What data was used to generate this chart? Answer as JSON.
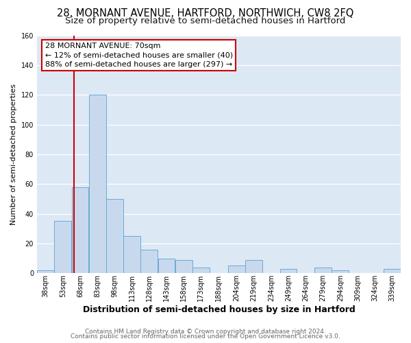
{
  "title1": "28, MORNANT AVENUE, HARTFORD, NORTHWICH, CW8 2FQ",
  "title2": "Size of property relative to semi-detached houses in Hartford",
  "xlabel": "Distribution of semi-detached houses by size in Hartford",
  "ylabel": "Number of semi-detached properties",
  "bin_labels": [
    "38sqm",
    "53sqm",
    "68sqm",
    "83sqm",
    "98sqm",
    "113sqm",
    "128sqm",
    "143sqm",
    "158sqm",
    "173sqm",
    "188sqm",
    "204sqm",
    "219sqm",
    "234sqm",
    "249sqm",
    "264sqm",
    "279sqm",
    "294sqm",
    "309sqm",
    "324sqm",
    "339sqm"
  ],
  "bin_edges": [
    38,
    53,
    68,
    83,
    98,
    113,
    128,
    143,
    158,
    173,
    188,
    204,
    219,
    234,
    249,
    264,
    279,
    294,
    309,
    324,
    339
  ],
  "bar_heights": [
    2,
    35,
    58,
    120,
    50,
    25,
    16,
    10,
    9,
    4,
    0,
    5,
    9,
    0,
    3,
    0,
    4,
    2,
    0,
    0,
    3
  ],
  "bar_color": "#c8d9ee",
  "bar_edgecolor": "#6aaad4",
  "plot_bg_color": "#dde8f5",
  "fig_bg_color": "#ffffff",
  "grid_color": "#ffffff",
  "property_size": 70,
  "red_line_color": "#cc0000",
  "annotation_title": "28 MORNANT AVENUE: 70sqm",
  "annotation_line1": "← 12% of semi-detached houses are smaller (40)",
  "annotation_line2": "88% of semi-detached houses are larger (297) →",
  "annotation_box_edgecolor": "#cc0000",
  "annotation_box_facecolor": "#ffffff",
  "ylim": [
    0,
    160
  ],
  "yticks": [
    0,
    20,
    40,
    60,
    80,
    100,
    120,
    140,
    160
  ],
  "footer1": "Contains HM Land Registry data © Crown copyright and database right 2024.",
  "footer2": "Contains public sector information licensed under the Open Government Licence v3.0.",
  "title1_fontsize": 10.5,
  "title2_fontsize": 9.5,
  "xlabel_fontsize": 9,
  "ylabel_fontsize": 8,
  "tick_fontsize": 7,
  "annotation_fontsize": 8,
  "footer_fontsize": 6.5
}
